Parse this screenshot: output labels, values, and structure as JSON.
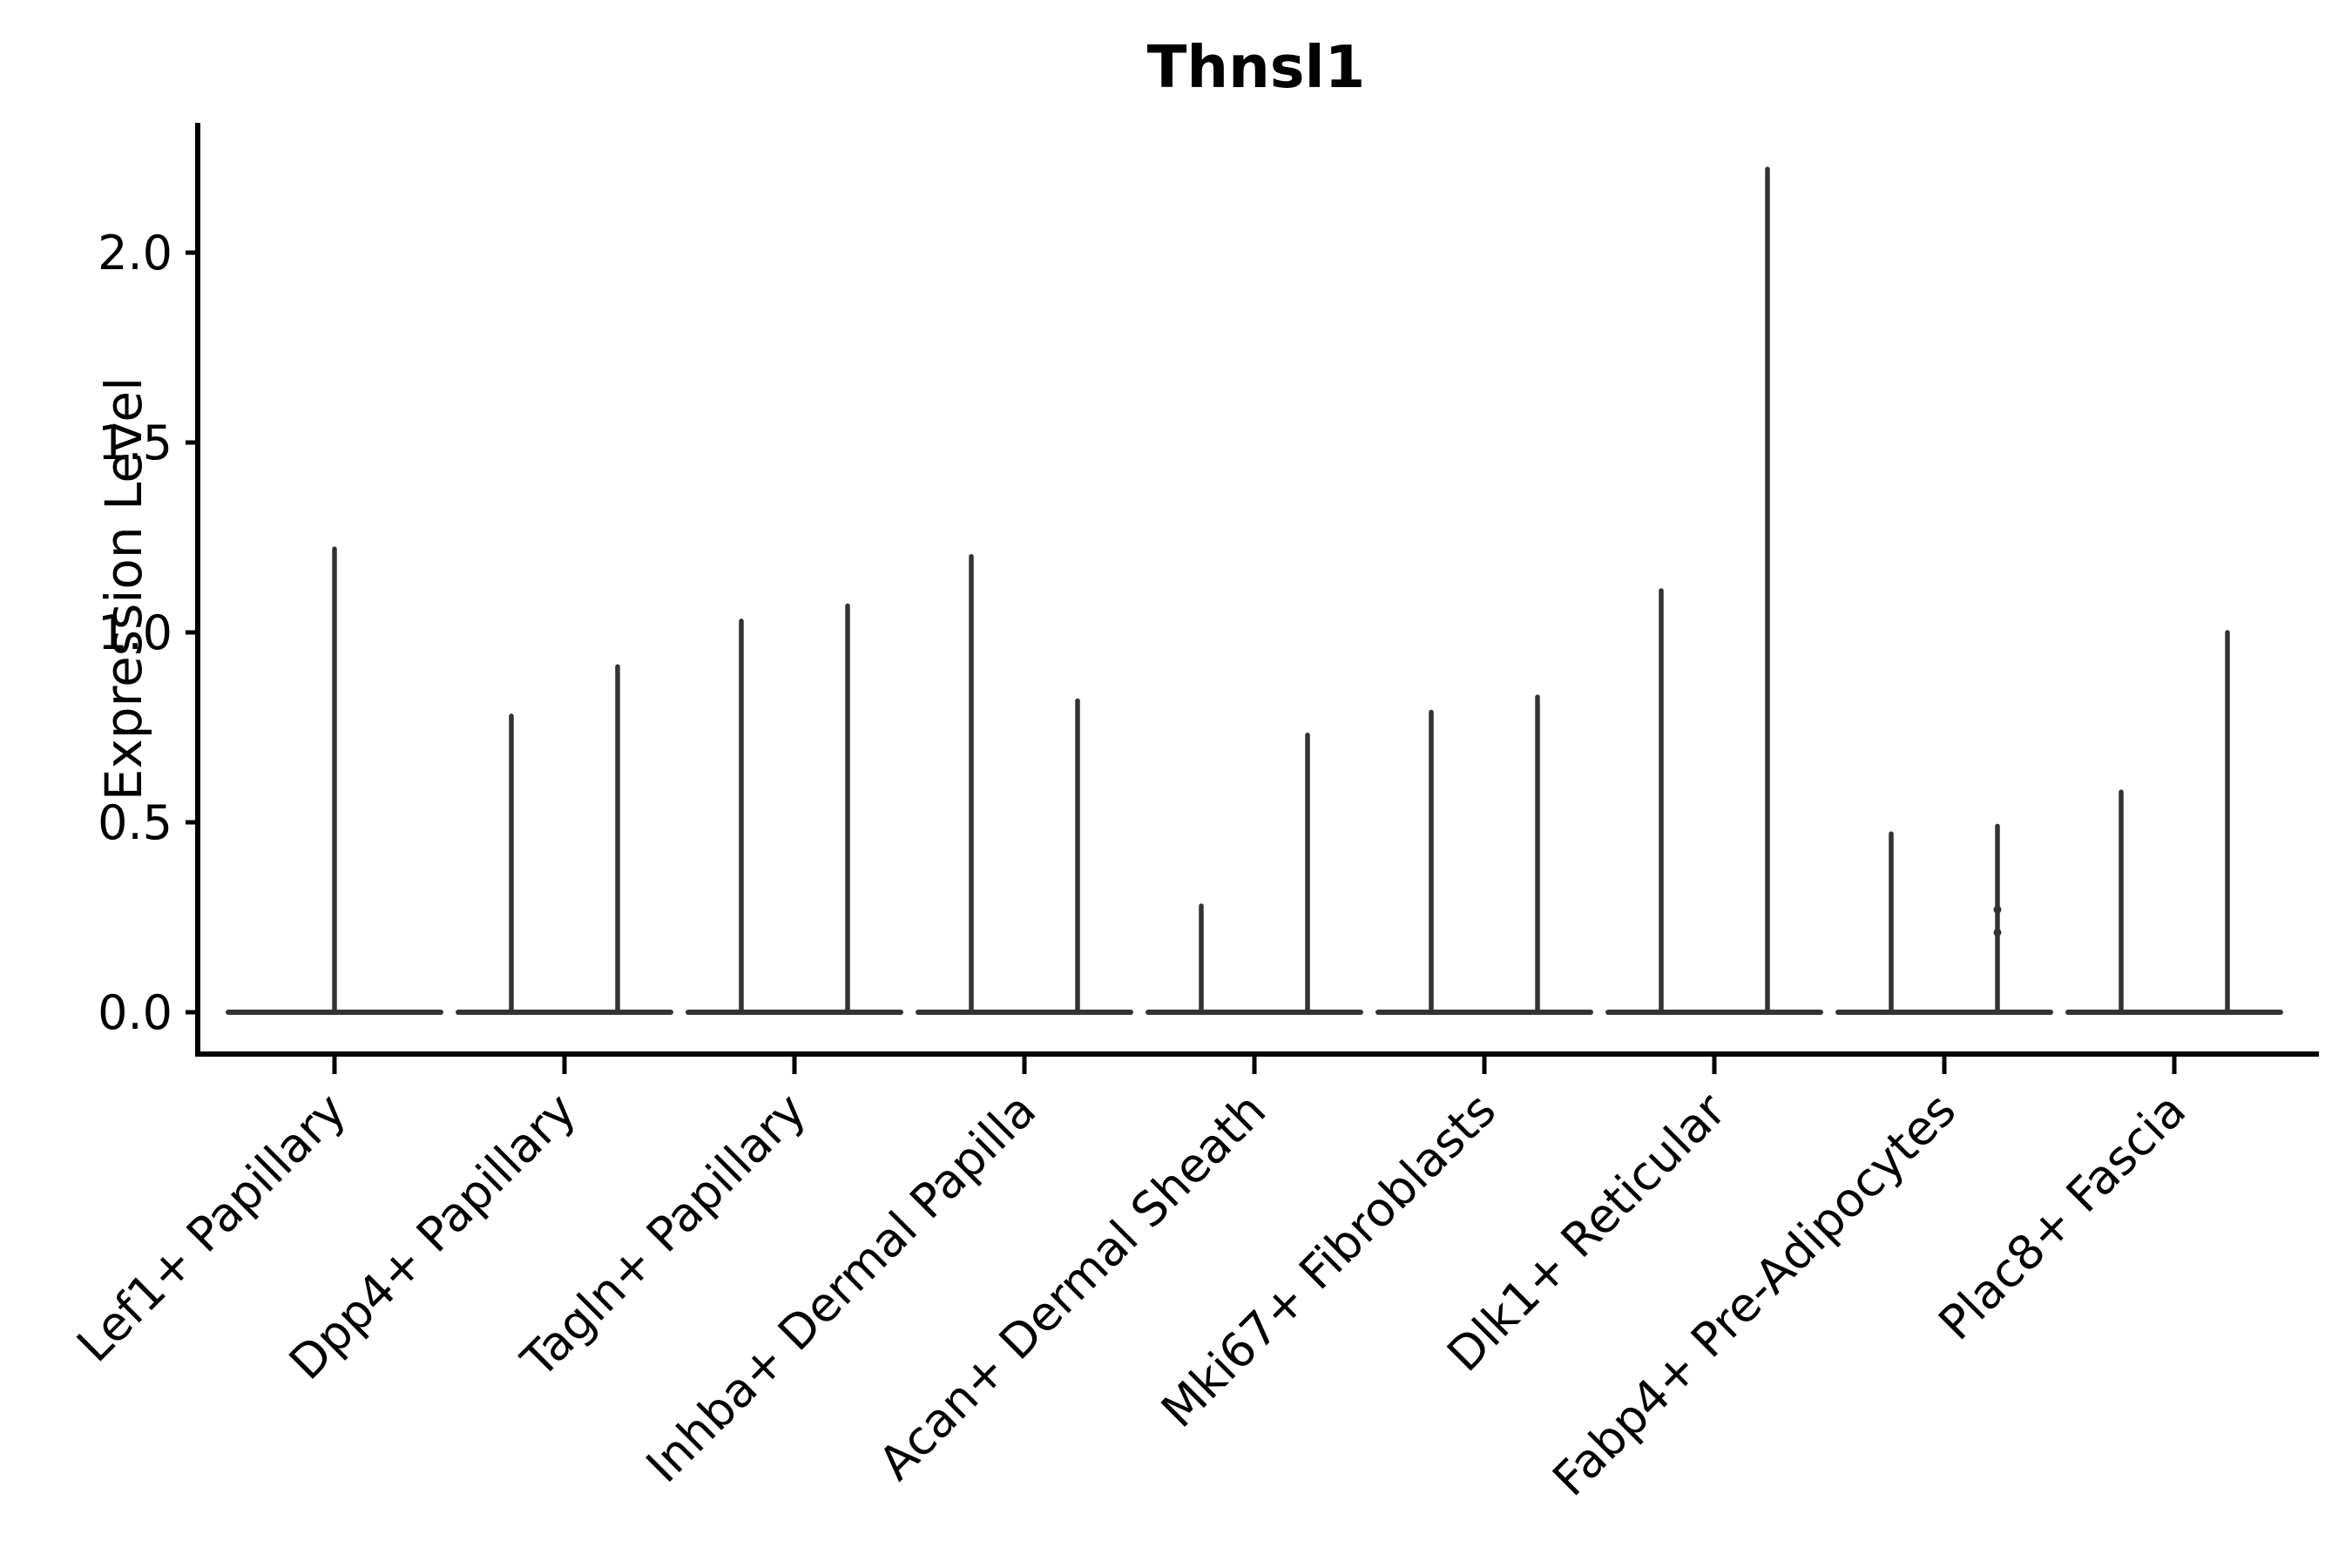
{
  "figure": {
    "title": "Thnsl1",
    "ylabel": "Expression Level",
    "xlabel": ""
  },
  "chart_data": {
    "type": "violin",
    "title": "Thnsl1",
    "subtitle": "",
    "xlabel": "",
    "ylabel": "Expression Level",
    "categories": [
      "Lef1+ Papillary",
      "Dpp4+ Papillary",
      "Tagln+ Papillary",
      "Inhba+ Dermal Papilla",
      "Acan+ Dermal Sheath",
      "Mki67+ Fibroblasts",
      "Dlk1+ Reticular",
      "Fabp4+ Pre-Adipocytes",
      "Plac8+ Fascia"
    ],
    "ytick_values": [
      0.0,
      0.5,
      1.0,
      1.5,
      2.0
    ],
    "ytick_labels": [
      "0.0",
      "0.5",
      "1.0",
      "1.5",
      "2.0"
    ],
    "ylim": [
      -0.11,
      2.34
    ],
    "grid": false,
    "legend": null,
    "spines": "left-bottom",
    "x_tick_rotation_deg": 45,
    "violin_style": "spike-over-flat-baseline",
    "groups": [
      {
        "label": "Lef1+ Papillary",
        "violins": [
          {
            "position": "full",
            "peak": 1.22
          }
        ]
      },
      {
        "label": "Dpp4+ Papillary",
        "violins": [
          {
            "position": "left",
            "peak": 0.78
          },
          {
            "position": "right",
            "peak": 0.91
          }
        ]
      },
      {
        "label": "Tagln+ Papillary",
        "violins": [
          {
            "position": "left",
            "peak": 1.03
          },
          {
            "position": "right",
            "peak": 1.07
          }
        ]
      },
      {
        "label": "Inhba+ Dermal Papilla",
        "violins": [
          {
            "position": "left",
            "peak": 1.2
          },
          {
            "position": "right",
            "peak": 0.82
          }
        ]
      },
      {
        "label": "Acan+ Dermal Sheath",
        "violins": [
          {
            "position": "left",
            "peak": 0.28
          },
          {
            "position": "right",
            "peak": 0.73
          }
        ]
      },
      {
        "label": "Mki67+ Fibroblasts",
        "violins": [
          {
            "position": "left",
            "peak": 0.79
          },
          {
            "position": "right",
            "peak": 0.83
          }
        ]
      },
      {
        "label": "Dlk1+ Reticular",
        "violins": [
          {
            "position": "left",
            "peak": 1.11
          },
          {
            "position": "right",
            "peak": 2.22
          }
        ]
      },
      {
        "label": "Fabp4+ Pre-Adipocytes",
        "violins": [
          {
            "position": "left",
            "peak": 0.47
          },
          {
            "position": "right",
            "peak": 0.49,
            "bumps": [
              0.21,
              0.27
            ]
          }
        ]
      },
      {
        "label": "Plac8+ Fascia",
        "violins": [
          {
            "position": "left",
            "peak": 0.58
          },
          {
            "position": "right",
            "peak": 1.0
          }
        ]
      }
    ],
    "colors": {
      "violin_line": "#333333",
      "axis": "#000000",
      "text": "#000000",
      "background": "#ffffff"
    }
  }
}
